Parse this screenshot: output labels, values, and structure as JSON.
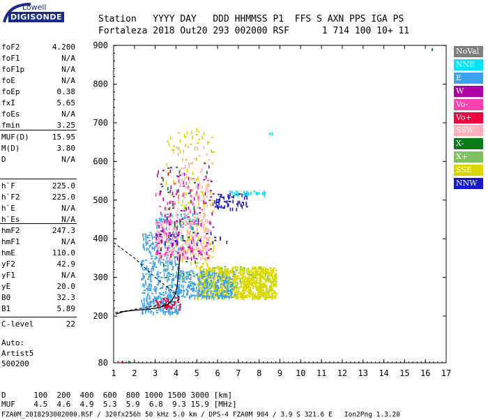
{
  "logo": {
    "word": "Lowell",
    "brand": "DIGISONDE"
  },
  "header": {
    "line1": "Station   YYYY DAY   DDD HHMMSS P1  FFS S AXN PPS IGA PS",
    "line2": "Fortaleza 2018 Out20 293 002000 RSF      1 714 100 10+ 11"
  },
  "params": [
    [
      {
        "name": "foF2",
        "value": "4.200"
      },
      {
        "name": "foF1",
        "value": "N/A"
      },
      {
        "name": "foF1p",
        "value": "N/A"
      },
      {
        "name": "foE",
        "value": "N/A"
      },
      {
        "name": "foEp",
        "value": "0.38"
      },
      {
        "name": "fxI",
        "value": "5.65"
      },
      {
        "name": "foEs",
        "value": "N/A"
      },
      {
        "name": "fmin",
        "value": "3.25"
      }
    ],
    [
      {
        "name": "MUF(D)",
        "value": "15.95"
      },
      {
        "name": "M(D)",
        "value": "3.80"
      },
      {
        "name": "D",
        "value": "N/A"
      }
    ],
    [
      {
        "name": "h`F",
        "value": "225.0"
      },
      {
        "name": "h`F2",
        "value": "225.0"
      },
      {
        "name": "h`E",
        "value": "N/A"
      },
      {
        "name": "h`Es",
        "value": "N/A"
      }
    ],
    [
      {
        "name": "hmF2",
        "value": "247.3"
      },
      {
        "name": "hmF1",
        "value": "N/A"
      },
      {
        "name": "hmE",
        "value": "110.0"
      },
      {
        "name": "yF2",
        "value": "42.9"
      },
      {
        "name": "yF1",
        "value": "N/A"
      },
      {
        "name": "yE",
        "value": "20.0"
      },
      {
        "name": "B0",
        "value": "32.3"
      },
      {
        "name": "B1",
        "value": "5.89"
      }
    ],
    [
      {
        "name": "C-level",
        "value": "22"
      }
    ]
  ],
  "autoscale": {
    "line1": "Auto:",
    "line2": "Artist5",
    "line3": "500200"
  },
  "legend": [
    {
      "label": "NoVal",
      "bg": "#7f7f7f",
      "fg": "#ffffff"
    },
    {
      "label": "NNE",
      "bg": "#00e5ff",
      "fg": "#ffffff"
    },
    {
      "label": "E",
      "bg": "#3aa0f0",
      "fg": "#ffffff"
    },
    {
      "label": "W",
      "bg": "#b000a8",
      "fg": "#ffffff"
    },
    {
      "label": "Vo-",
      "bg": "#ff40b0",
      "fg": "#ffffff"
    },
    {
      "label": "Vo+",
      "bg": "#f0003c",
      "fg": "#ffffff"
    },
    {
      "label": "SSW",
      "bg": "#ffb0b8",
      "fg": "#ffffff"
    },
    {
      "label": "X-",
      "bg": "#0a7a1a",
      "fg": "#ffffff"
    },
    {
      "label": "X+",
      "bg": "#7fc060",
      "fg": "#ffffff"
    },
    {
      "label": "SSE",
      "bg": "#d8d800",
      "fg": "#ffffff"
    },
    {
      "label": "NNW",
      "bg": "#1818c8",
      "fg": "#ffffff"
    }
  ],
  "footer": {
    "d_line": "D      100  200  400  600  800 1000 1500 3000 [km]",
    "muf_line": "MUF    4.5  4.6  4.9  5.3  5.9  6.8  9.3 15.9 [MHz]",
    "file_line": "FZA0M_2018293002000.RSF / 320fx256h 50 kHz 5.0 km / DPS-4 FZA0M 904 / 3.9 S 321.6 E   Ion2Png 1.3.20"
  },
  "chart_data": {
    "type": "scatter",
    "title": "",
    "xlabel": "",
    "ylabel": "",
    "xlim": [
      1,
      17
    ],
    "ylim": [
      80,
      900
    ],
    "x_ticks": [
      1,
      2,
      3,
      4,
      5,
      6,
      7,
      8,
      9,
      10,
      11,
      12,
      13,
      14,
      15,
      16,
      17
    ],
    "y_ticks": [
      80,
      200,
      300,
      400,
      500,
      600,
      700,
      800,
      900
    ],
    "clusters": [
      {
        "name": "SSE",
        "color": "#d8d800",
        "x": [
          5.0,
          8.8
        ],
        "y": [
          250,
          330
        ],
        "n": 900
      },
      {
        "name": "SSE",
        "color": "#d8d800",
        "x": [
          3.5,
          5.8
        ],
        "y": [
          330,
          690
        ],
        "n": 140
      },
      {
        "name": "E",
        "color": "#3aa0f0",
        "x": [
          2.3,
          4.2
        ],
        "y": [
          210,
          420
        ],
        "n": 380
      },
      {
        "name": "E",
        "color": "#3aa0f0",
        "x": [
          4.0,
          6.8
        ],
        "y": [
          250,
          320
        ],
        "n": 260
      },
      {
        "name": "E",
        "color": "#3aa0f0",
        "x": [
          3.0,
          5.0
        ],
        "y": [
          430,
          470
        ],
        "n": 60
      },
      {
        "name": "SSW",
        "color": "#ffb0b8",
        "x": [
          3.0,
          5.6
        ],
        "y": [
          350,
          450
        ],
        "n": 280
      },
      {
        "name": "SSW",
        "color": "#ffb0b8",
        "x": [
          3.8,
          5.6
        ],
        "y": [
          450,
          650
        ],
        "n": 90
      },
      {
        "name": "W",
        "color": "#b000a8",
        "x": [
          3.0,
          5.8
        ],
        "y": [
          350,
          600
        ],
        "n": 120
      },
      {
        "name": "Vo-",
        "color": "#ff40b0",
        "x": [
          3.0,
          5.6
        ],
        "y": [
          360,
          560
        ],
        "n": 70
      },
      {
        "name": "Vo+",
        "color": "#f0003c",
        "x": [
          3.0,
          4.2
        ],
        "y": [
          222,
          250
        ],
        "n": 40
      },
      {
        "name": "NNW",
        "color": "#1818c8",
        "x": [
          5.8,
          7.4
        ],
        "y": [
          480,
          520
        ],
        "n": 60
      },
      {
        "name": "NNW",
        "color": "#1818c8",
        "x": [
          3.0,
          6.5
        ],
        "y": [
          390,
          420
        ],
        "n": 25
      },
      {
        "name": "NNE",
        "color": "#00e5ff",
        "x": [
          6.5,
          8.6
        ],
        "y": [
          515,
          525
        ],
        "n": 30
      },
      {
        "name": "X-",
        "color": "#0a7a1a",
        "x": [
          3.0,
          5.5
        ],
        "y": [
          300,
          600
        ],
        "n": 30
      },
      {
        "name": "X+",
        "color": "#7fc060",
        "x": [
          3.5,
          8.5
        ],
        "y": [
          280,
          330
        ],
        "n": 40
      }
    ],
    "isolated_points": [
      {
        "name": "NNE",
        "color": "#00e5ff",
        "x": 8.5,
        "y": 675
      },
      {
        "name": "NNE",
        "color": "#00e5ff",
        "x": 8.6,
        "y": 675
      },
      {
        "name": "X-",
        "color": "#0a7a1a",
        "x": 16.3,
        "y": 893
      },
      {
        "name": "Vo-",
        "color": "#ff40b0",
        "x": 1.2,
        "y": 85
      },
      {
        "name": "Vo+",
        "color": "#f0003c",
        "x": 1.4,
        "y": 85
      },
      {
        "name": "X-",
        "color": "#0a7a1a",
        "x": 1.7,
        "y": 85
      }
    ],
    "trace_virtual_height": {
      "color": "#000000",
      "x": [
        1.1,
        1.5,
        2.0,
        2.5,
        3.0,
        3.3,
        3.6,
        3.8,
        3.95,
        4.05,
        4.1,
        4.15,
        4.2
      ],
      "y": [
        205,
        212,
        215,
        217,
        220,
        224,
        230,
        240,
        255,
        275,
        300,
        330,
        360
      ]
    },
    "profile_real_height": {
      "color": "#000000",
      "dashed": true,
      "x": [
        1.0,
        1.5,
        2.0,
        2.5,
        3.0,
        3.5,
        3.9,
        4.1,
        4.2,
        4.1,
        3.6,
        3.0,
        2.3,
        1.8,
        1.4,
        1.0
      ],
      "y": [
        390,
        370,
        350,
        325,
        300,
        278,
        262,
        252,
        247,
        240,
        232,
        226,
        220,
        215,
        212,
        208
      ]
    }
  }
}
